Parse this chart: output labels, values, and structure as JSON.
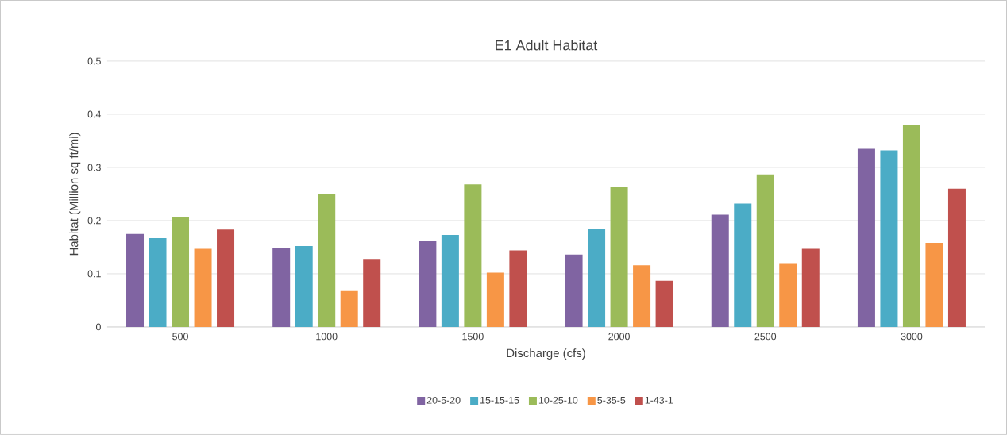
{
  "chart_data": {
    "type": "bar",
    "title": "E1 Adult Habitat",
    "xlabel": "Discharge (cfs)",
    "ylabel": "Habitat (Million sq ft/mi)",
    "categories": [
      "500",
      "1000",
      "1500",
      "2000",
      "2500",
      "3000"
    ],
    "series": [
      {
        "name": "20-5-20",
        "color": "#8064a2",
        "values": [
          0.175,
          0.148,
          0.161,
          0.136,
          0.211,
          0.335
        ]
      },
      {
        "name": "15-15-15",
        "color": "#4bacc6",
        "values": [
          0.167,
          0.152,
          0.173,
          0.185,
          0.232,
          0.332
        ]
      },
      {
        "name": "10-25-10",
        "color": "#9bbb59",
        "values": [
          0.206,
          0.249,
          0.268,
          0.263,
          0.287,
          0.38
        ]
      },
      {
        "name": "5-35-5",
        "color": "#f79646",
        "values": [
          0.147,
          0.069,
          0.102,
          0.116,
          0.12,
          0.158
        ]
      },
      {
        "name": "1-43-1",
        "color": "#c0504d",
        "values": [
          0.183,
          0.128,
          0.144,
          0.087,
          0.147,
          0.26
        ]
      }
    ],
    "ylim": [
      0,
      0.5
    ],
    "yticks": [
      0,
      0.1,
      0.2,
      0.3,
      0.4,
      0.5
    ],
    "grid": "y",
    "legend": "bottom"
  }
}
